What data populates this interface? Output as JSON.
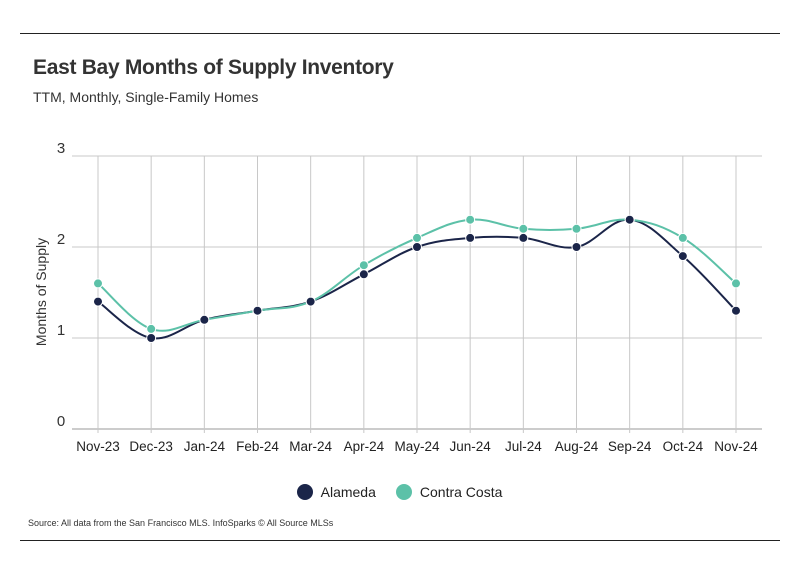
{
  "title": "East Bay Months of Supply Inventory",
  "subtitle": "TTM, Monthly, Single-Family Homes",
  "source": "Source:  All data from the San Francisco MLS. InfoSparks © All Source MLSs",
  "chart_data": {
    "type": "line",
    "title": "East Bay Months of Supply Inventory",
    "subtitle": "TTM, Monthly, Single-Family Homes",
    "xlabel": "",
    "ylabel": "Months of Supply",
    "ylim": [
      0,
      3
    ],
    "yticks": [
      "0",
      "1",
      "2",
      "3"
    ],
    "grid": true,
    "legend_position": "bottom-center",
    "categories": [
      "Nov-23",
      "Dec-23",
      "Jan-24",
      "Feb-24",
      "Mar-24",
      "Apr-24",
      "May-24",
      "Jun-24",
      "Jul-24",
      "Aug-24",
      "Sep-24",
      "Oct-24",
      "Nov-24"
    ],
    "series": [
      {
        "name": "Alameda",
        "color": "#1b2549",
        "values": [
          1.4,
          1.0,
          1.2,
          1.3,
          1.4,
          1.7,
          2.0,
          2.1,
          2.1,
          2.0,
          2.3,
          1.9,
          1.3
        ]
      },
      {
        "name": "Contra Costa",
        "color": "#5cc1a8",
        "values": [
          1.6,
          1.1,
          1.2,
          1.3,
          1.4,
          1.8,
          2.1,
          2.3,
          2.2,
          2.2,
          2.3,
          2.1,
          1.6
        ]
      }
    ]
  }
}
